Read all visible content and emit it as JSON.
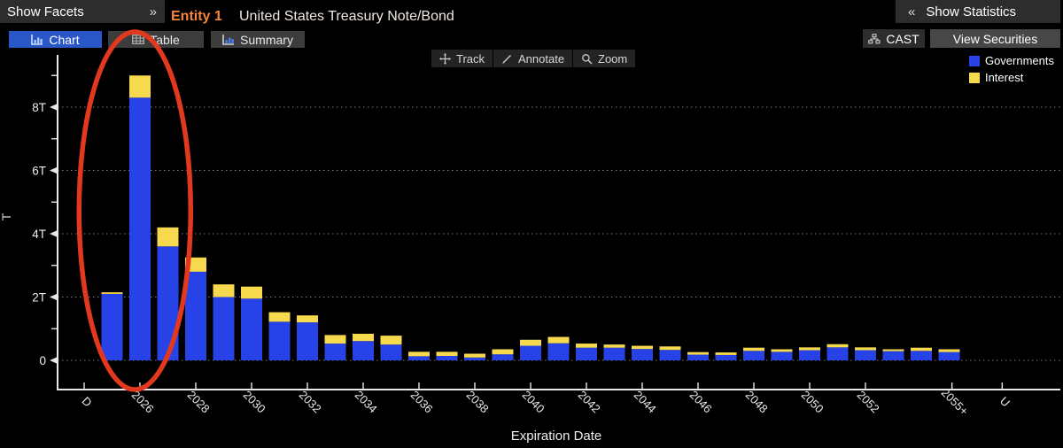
{
  "header": {
    "show_facets": "Show Facets",
    "expand_icon": "»",
    "entity_label": "Entity 1",
    "security_title": "United States Treasury Note/Bond",
    "collapse_icon": "«",
    "show_statistics": "Show Statistics"
  },
  "tabs": [
    {
      "id": "chart",
      "label": "Chart",
      "selected": true
    },
    {
      "id": "table",
      "label": "Table",
      "selected": false
    },
    {
      "id": "summary",
      "label": "Summary",
      "selected": false
    }
  ],
  "toolbar": {
    "track": "Track",
    "annotate": "Annotate",
    "zoom": "Zoom",
    "cast": "CAST",
    "view_securities": "View Securities"
  },
  "legend": [
    {
      "label": "Governments",
      "color": "#2743e8"
    },
    {
      "label": "Interest",
      "color": "#f7d94e"
    }
  ],
  "chart_data": {
    "type": "bar",
    "stacked": true,
    "title": "",
    "xlabel": "Expiration Date",
    "ylabel": "T",
    "ylim": [
      0,
      9.5
    ],
    "grid": "horizontal-dotted",
    "legend_position": "top-right",
    "categories": [
      2025,
      2026,
      2027,
      2028,
      2029,
      2030,
      2031,
      2032,
      2033,
      2034,
      2035,
      2036,
      2037,
      2038,
      2039,
      2040,
      2041,
      2042,
      2043,
      2044,
      2045,
      2046,
      2047,
      2048,
      2049,
      2050,
      2051,
      2052,
      2053,
      2054,
      2055
    ],
    "series": [
      {
        "name": "Governments",
        "color": "#2743e8",
        "values": [
          2.1,
          8.3,
          3.6,
          2.8,
          2.0,
          1.95,
          1.22,
          1.2,
          0.53,
          0.61,
          0.5,
          0.13,
          0.14,
          0.09,
          0.19,
          0.46,
          0.54,
          0.4,
          0.4,
          0.36,
          0.33,
          0.18,
          0.17,
          0.3,
          0.27,
          0.32,
          0.41,
          0.32,
          0.29,
          0.3,
          0.26
        ]
      },
      {
        "name": "Interest",
        "color": "#f7d94e",
        "values": [
          0.05,
          0.7,
          0.6,
          0.45,
          0.4,
          0.38,
          0.3,
          0.22,
          0.27,
          0.23,
          0.28,
          0.14,
          0.13,
          0.12,
          0.16,
          0.19,
          0.2,
          0.13,
          0.1,
          0.1,
          0.11,
          0.08,
          0.08,
          0.1,
          0.08,
          0.09,
          0.1,
          0.09,
          0.06,
          0.1,
          0.09
        ]
      }
    ],
    "y_ticks": [
      {
        "value": 0,
        "label": "0"
      },
      {
        "value": 2,
        "label": "2T"
      },
      {
        "value": 4,
        "label": "4T"
      },
      {
        "value": 6,
        "label": "6T"
      },
      {
        "value": 8,
        "label": "8T"
      }
    ],
    "y_minor_ticks": [
      1,
      3,
      5,
      7,
      9
    ],
    "x_ticks": [
      {
        "label": "D",
        "year": 2024
      },
      {
        "label": "2026",
        "year": 2026
      },
      {
        "label": "2028",
        "year": 2028
      },
      {
        "label": "2030",
        "year": 2030
      },
      {
        "label": "2032",
        "year": 2032
      },
      {
        "label": "2034",
        "year": 2034
      },
      {
        "label": "2036",
        "year": 2036
      },
      {
        "label": "2038",
        "year": 2038
      },
      {
        "label": "2040",
        "year": 2040
      },
      {
        "label": "2042",
        "year": 2042
      },
      {
        "label": "2044",
        "year": 2044
      },
      {
        "label": "2046",
        "year": 2046
      },
      {
        "label": "2048",
        "year": 2048
      },
      {
        "label": "2050",
        "year": 2050
      },
      {
        "label": "2052",
        "year": 2052
      },
      {
        "label": "2055+",
        "year": 2055.1
      },
      {
        "label": "U",
        "year": 2056.9
      }
    ],
    "annotation": {
      "shape": "ellipse",
      "stroke_color": "#e2391e",
      "highlighted_years": [
        2025,
        2026
      ]
    }
  }
}
